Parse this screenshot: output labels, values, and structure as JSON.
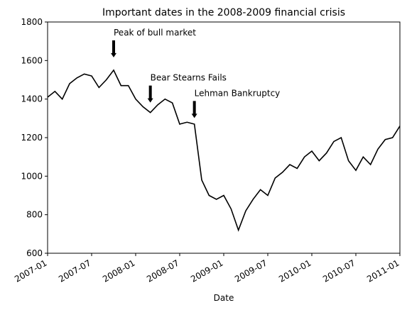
{
  "chart_data": {
    "type": "line",
    "title": "Important dates in the 2008-2009 financial crisis",
    "x_label": "Date",
    "x": [
      "2007-01",
      "2007-02",
      "2007-03",
      "2007-04",
      "2007-05",
      "2007-06",
      "2007-07",
      "2007-08",
      "2007-09",
      "2007-10",
      "2007-11",
      "2007-12",
      "2008-01",
      "2008-02",
      "2008-03",
      "2008-04",
      "2008-05",
      "2008-06",
      "2008-07",
      "2008-08",
      "2008-09",
      "2008-10",
      "2008-11",
      "2008-12",
      "2009-01",
      "2009-02",
      "2009-03",
      "2009-04",
      "2009-05",
      "2009-06",
      "2009-07",
      "2009-08",
      "2009-09",
      "2009-10",
      "2009-11",
      "2009-12",
      "2010-01",
      "2010-02",
      "2010-03",
      "2010-04",
      "2010-05",
      "2010-06",
      "2010-07",
      "2010-08",
      "2010-09",
      "2010-10",
      "2010-11",
      "2010-12",
      "2011-01"
    ],
    "series": [
      {
        "color": "#000000",
        "values": [
          1410,
          1440,
          1400,
          1480,
          1510,
          1530,
          1520,
          1460,
          1500,
          1550,
          1470,
          1470,
          1400,
          1360,
          1330,
          1370,
          1400,
          1380,
          1270,
          1280,
          1270,
          980,
          900,
          880,
          900,
          830,
          720,
          820,
          880,
          930,
          900,
          990,
          1020,
          1060,
          1040,
          1100,
          1130,
          1080,
          1120,
          1180,
          1200,
          1080,
          1030,
          1100,
          1060,
          1140,
          1190,
          1200,
          1260
        ]
      }
    ],
    "xlim": [
      "2007-01",
      "2011-01"
    ],
    "xticks": [
      "2007-01",
      "2007-07",
      "2008-01",
      "2008-07",
      "2009-01",
      "2009-07",
      "2010-01",
      "2010-07",
      "2011-01"
    ],
    "ylim": [
      600,
      1800
    ],
    "yticks": [
      600,
      800,
      1000,
      1200,
      1400,
      1600,
      1800
    ],
    "annotations": [
      {
        "text": "Peak of bull market",
        "x": "2007-10",
        "y": 1565
      },
      {
        "text": "Bear Stearns Fails",
        "x": "2008-03",
        "y": 1330
      },
      {
        "text": "Lehman Bankruptcy",
        "x": "2008-09",
        "y": 1250
      }
    ]
  }
}
